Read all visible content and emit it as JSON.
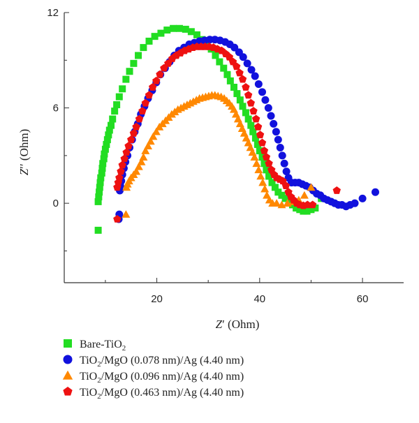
{
  "chart_data": {
    "type": "scatter",
    "xlabel_main": "Z",
    "xlabel_prime": "′",
    "xlabel_unit": " (Ohm)",
    "ylabel_main": "Z",
    "ylabel_prime": "′′",
    "ylabel_unit": " (Ohm)",
    "xlim": [
      2,
      68
    ],
    "ylim": [
      -5,
      12
    ],
    "x_ticks": [
      20,
      40,
      60
    ],
    "x_tick_labels": [
      "20",
      "40",
      "60"
    ],
    "y_ticks": [
      0,
      6,
      12
    ],
    "y_tick_labels": [
      "0",
      "6",
      "12"
    ],
    "grid": false,
    "legend_position": "bottom",
    "series": [
      {
        "name": "Bare-TiO",
        "name_sub": "2",
        "name_rest": "",
        "marker": "square",
        "color": "#22dd22",
        "points": [
          [
            8.6,
            -1.7
          ],
          [
            8.6,
            0.1
          ],
          [
            8.7,
            0.4
          ],
          [
            8.8,
            0.7
          ],
          [
            8.9,
            1.0
          ],
          [
            9.0,
            1.3
          ],
          [
            9.1,
            1.6
          ],
          [
            9.3,
            1.9
          ],
          [
            9.4,
            2.2
          ],
          [
            9.5,
            2.5
          ],
          [
            9.7,
            2.8
          ],
          [
            9.8,
            3.1
          ],
          [
            10.0,
            3.4
          ],
          [
            10.2,
            3.7
          ],
          [
            10.4,
            4.0
          ],
          [
            10.6,
            4.3
          ],
          [
            10.8,
            4.6
          ],
          [
            11.1,
            4.9
          ],
          [
            11.4,
            5.3
          ],
          [
            11.8,
            5.8
          ],
          [
            12.2,
            6.2
          ],
          [
            12.7,
            6.7
          ],
          [
            13.3,
            7.2
          ],
          [
            14.0,
            7.8
          ],
          [
            14.7,
            8.3
          ],
          [
            15.5,
            8.8
          ],
          [
            16.4,
            9.3
          ],
          [
            17.4,
            9.8
          ],
          [
            18.5,
            10.2
          ],
          [
            19.6,
            10.5
          ],
          [
            20.8,
            10.7
          ],
          [
            22.0,
            10.9
          ],
          [
            23.2,
            11.0
          ],
          [
            24.4,
            11.0
          ],
          [
            25.6,
            10.95
          ],
          [
            26.7,
            10.8
          ],
          [
            27.8,
            10.6
          ],
          [
            28.8,
            10.3
          ],
          [
            29.7,
            10.0
          ],
          [
            30.6,
            9.7
          ],
          [
            31.4,
            9.3
          ],
          [
            32.2,
            8.9
          ],
          [
            33.0,
            8.5
          ],
          [
            33.7,
            8.1
          ],
          [
            34.3,
            7.7
          ],
          [
            35.0,
            7.3
          ],
          [
            35.6,
            6.9
          ],
          [
            36.2,
            6.5
          ],
          [
            36.7,
            6.1
          ],
          [
            37.3,
            5.7
          ],
          [
            37.8,
            5.3
          ],
          [
            38.3,
            4.9
          ],
          [
            38.7,
            4.5
          ],
          [
            39.2,
            4.1
          ],
          [
            39.6,
            3.7
          ],
          [
            40.0,
            3.3
          ],
          [
            40.5,
            2.9
          ],
          [
            40.9,
            2.5
          ],
          [
            41.3,
            2.1
          ],
          [
            41.8,
            1.7
          ],
          [
            42.4,
            1.3
          ],
          [
            43.0,
            1.0
          ],
          [
            43.6,
            0.7
          ],
          [
            44.3,
            0.5
          ],
          [
            45.0,
            0.3
          ],
          [
            45.7,
            0.1
          ],
          [
            46.4,
            -0.1
          ],
          [
            47.1,
            -0.3
          ],
          [
            47.8,
            -0.4
          ],
          [
            48.5,
            -0.5
          ],
          [
            49.2,
            -0.5
          ],
          [
            50.0,
            -0.4
          ],
          [
            50.8,
            -0.3
          ],
          [
            52.0,
            0.3
          ]
        ]
      },
      {
        "name": "TiO",
        "name_sub": "2",
        "name_rest": "/MgO (0.078 nm)/Ag (4.40 nm)",
        "marker": "circle",
        "color": "#1111dd",
        "points": [
          [
            12.6,
            -1.0
          ],
          [
            12.7,
            -0.7
          ],
          [
            12.8,
            0.8
          ],
          [
            12.9,
            1.1
          ],
          [
            13.1,
            1.4
          ],
          [
            13.3,
            1.8
          ],
          [
            13.6,
            2.2
          ],
          [
            13.9,
            2.6
          ],
          [
            14.3,
            3.0
          ],
          [
            14.7,
            3.5
          ],
          [
            15.2,
            4.0
          ],
          [
            15.7,
            4.5
          ],
          [
            16.3,
            5.0
          ],
          [
            16.9,
            5.6
          ],
          [
            17.6,
            6.1
          ],
          [
            18.3,
            6.6
          ],
          [
            19.1,
            7.1
          ],
          [
            19.9,
            7.6
          ],
          [
            20.7,
            8.1
          ],
          [
            21.6,
            8.5
          ],
          [
            22.5,
            8.9
          ],
          [
            23.4,
            9.3
          ],
          [
            24.3,
            9.6
          ],
          [
            25.3,
            9.8
          ],
          [
            26.3,
            10.0
          ],
          [
            27.3,
            10.1
          ],
          [
            28.3,
            10.2
          ],
          [
            29.3,
            10.25
          ],
          [
            30.3,
            10.3
          ],
          [
            31.3,
            10.3
          ],
          [
            32.3,
            10.25
          ],
          [
            33.3,
            10.15
          ],
          [
            34.2,
            10.0
          ],
          [
            35.1,
            9.8
          ],
          [
            36.0,
            9.5
          ],
          [
            36.8,
            9.2
          ],
          [
            37.6,
            8.8
          ],
          [
            38.4,
            8.4
          ],
          [
            39.1,
            8.0
          ],
          [
            39.8,
            7.5
          ],
          [
            40.5,
            7.0
          ],
          [
            41.1,
            6.5
          ],
          [
            41.7,
            6.0
          ],
          [
            42.2,
            5.5
          ],
          [
            42.7,
            5.0
          ],
          [
            43.2,
            4.5
          ],
          [
            43.6,
            4.0
          ],
          [
            44.0,
            3.5
          ],
          [
            44.4,
            3.0
          ],
          [
            44.8,
            2.5
          ],
          [
            45.2,
            2.0
          ],
          [
            45.6,
            1.6
          ],
          [
            46.2,
            1.3
          ],
          [
            46.9,
            1.3
          ],
          [
            47.6,
            1.3
          ],
          [
            48.3,
            1.2
          ],
          [
            49.0,
            1.1
          ],
          [
            49.7,
            1.0
          ],
          [
            50.4,
            0.8
          ],
          [
            51.1,
            0.6
          ],
          [
            51.8,
            0.5
          ],
          [
            52.5,
            0.3
          ],
          [
            53.2,
            0.2
          ],
          [
            53.9,
            0.1
          ],
          [
            54.6,
            0.0
          ],
          [
            55.3,
            -0.1
          ],
          [
            56.0,
            -0.1
          ],
          [
            56.8,
            -0.2
          ],
          [
            57.6,
            -0.1
          ],
          [
            58.5,
            0.0
          ],
          [
            60.0,
            0.3
          ],
          [
            62.5,
            0.7
          ]
        ]
      },
      {
        "name": "TiO",
        "name_sub": "2",
        "name_rest": "/MgO (0.096 nm)/Ag (4.40 nm)",
        "marker": "triangle",
        "color": "#ff8800",
        "points": [
          [
            14.0,
            -0.7
          ],
          [
            14.1,
            1.0
          ],
          [
            14.3,
            1.2
          ],
          [
            14.6,
            1.4
          ],
          [
            15.0,
            1.6
          ],
          [
            15.5,
            1.8
          ],
          [
            16.0,
            2.0
          ],
          [
            16.5,
            2.3
          ],
          [
            17.0,
            2.6
          ],
          [
            17.4,
            2.9
          ],
          [
            17.8,
            3.3
          ],
          [
            18.3,
            3.6
          ],
          [
            18.8,
            3.9
          ],
          [
            19.3,
            4.2
          ],
          [
            19.9,
            4.5
          ],
          [
            20.5,
            4.8
          ],
          [
            21.1,
            5.0
          ],
          [
            21.7,
            5.2
          ],
          [
            22.3,
            5.4
          ],
          [
            22.9,
            5.6
          ],
          [
            23.5,
            5.75
          ],
          [
            24.1,
            5.9
          ],
          [
            24.7,
            6.0
          ],
          [
            25.3,
            6.1
          ],
          [
            25.9,
            6.2
          ],
          [
            26.5,
            6.3
          ],
          [
            27.1,
            6.4
          ],
          [
            27.7,
            6.5
          ],
          [
            28.3,
            6.6
          ],
          [
            28.9,
            6.65
          ],
          [
            29.5,
            6.7
          ],
          [
            30.1,
            6.75
          ],
          [
            30.7,
            6.8
          ],
          [
            31.3,
            6.8
          ],
          [
            31.9,
            6.75
          ],
          [
            32.5,
            6.7
          ],
          [
            33.1,
            6.6
          ],
          [
            33.6,
            6.45
          ],
          [
            34.1,
            6.3
          ],
          [
            34.6,
            6.1
          ],
          [
            35.0,
            5.9
          ],
          [
            35.4,
            5.6
          ],
          [
            35.8,
            5.3
          ],
          [
            36.2,
            5.0
          ],
          [
            36.6,
            4.7
          ],
          [
            37.0,
            4.4
          ],
          [
            37.4,
            4.1
          ],
          [
            37.8,
            3.8
          ],
          [
            38.2,
            3.5
          ],
          [
            38.6,
            3.2
          ],
          [
            39.0,
            2.9
          ],
          [
            39.4,
            2.5
          ],
          [
            39.8,
            2.1
          ],
          [
            40.2,
            1.7
          ],
          [
            40.6,
            1.3
          ],
          [
            41.0,
            0.9
          ],
          [
            41.4,
            0.5
          ],
          [
            41.9,
            0.2
          ],
          [
            42.5,
            0.0
          ],
          [
            43.3,
            0.0
          ],
          [
            44.3,
            -0.1
          ],
          [
            45.4,
            0.0
          ],
          [
            46.5,
            0.1
          ],
          [
            47.6,
            0.2
          ],
          [
            48.7,
            0.5
          ],
          [
            50.0,
            1.0
          ]
        ]
      },
      {
        "name": "TiO",
        "name_sub": "2",
        "name_rest": "/MgO (0.463 nm)/Ag (4.40 nm)",
        "marker": "pentagon",
        "color": "#ee1111",
        "points": [
          [
            12.3,
            -1.0
          ],
          [
            12.3,
            1.0
          ],
          [
            12.5,
            1.3
          ],
          [
            12.7,
            1.6
          ],
          [
            13.0,
            2.0
          ],
          [
            13.3,
            2.4
          ],
          [
            13.7,
            2.8
          ],
          [
            14.1,
            3.2
          ],
          [
            14.5,
            3.6
          ],
          [
            15.0,
            4.0
          ],
          [
            15.5,
            4.4
          ],
          [
            16.0,
            4.8
          ],
          [
            16.6,
            5.3
          ],
          [
            17.2,
            5.8
          ],
          [
            17.8,
            6.3
          ],
          [
            18.5,
            6.8
          ],
          [
            19.2,
            7.3
          ],
          [
            19.9,
            7.7
          ],
          [
            20.6,
            8.1
          ],
          [
            21.4,
            8.5
          ],
          [
            22.2,
            8.8
          ],
          [
            23.0,
            9.1
          ],
          [
            23.8,
            9.3
          ],
          [
            24.6,
            9.45
          ],
          [
            25.4,
            9.6
          ],
          [
            26.2,
            9.7
          ],
          [
            27.0,
            9.8
          ],
          [
            27.8,
            9.85
          ],
          [
            28.6,
            9.85
          ],
          [
            29.4,
            9.85
          ],
          [
            30.2,
            9.85
          ],
          [
            31.0,
            9.8
          ],
          [
            31.8,
            9.7
          ],
          [
            32.6,
            9.6
          ],
          [
            33.4,
            9.4
          ],
          [
            34.1,
            9.2
          ],
          [
            34.8,
            8.9
          ],
          [
            35.5,
            8.6
          ],
          [
            36.1,
            8.2
          ],
          [
            36.7,
            7.8
          ],
          [
            37.3,
            7.3
          ],
          [
            37.8,
            6.8
          ],
          [
            38.3,
            6.3
          ],
          [
            38.8,
            5.8
          ],
          [
            39.3,
            5.3
          ],
          [
            39.7,
            4.8
          ],
          [
            40.1,
            4.3
          ],
          [
            40.5,
            3.8
          ],
          [
            40.9,
            3.3
          ],
          [
            41.3,
            2.9
          ],
          [
            41.8,
            2.5
          ],
          [
            42.3,
            2.1
          ],
          [
            42.8,
            1.8
          ],
          [
            43.3,
            1.6
          ],
          [
            43.9,
            1.5
          ],
          [
            44.5,
            1.4
          ],
          [
            45.1,
            1.1
          ],
          [
            45.6,
            0.7
          ],
          [
            46.1,
            0.4
          ],
          [
            46.6,
            0.2
          ],
          [
            47.2,
            0.0
          ],
          [
            47.8,
            -0.1
          ],
          [
            48.5,
            -0.15
          ],
          [
            49.3,
            -0.1
          ],
          [
            50.3,
            -0.1
          ],
          [
            55.0,
            0.8
          ]
        ]
      }
    ]
  }
}
